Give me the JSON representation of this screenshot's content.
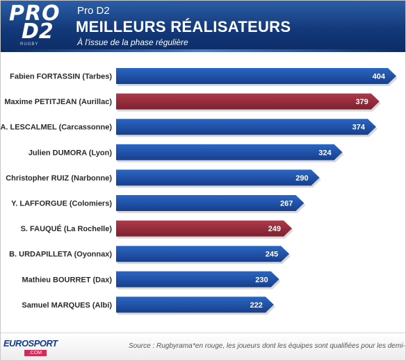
{
  "header": {
    "logo_line1": "PRO",
    "logo_line2": "D2",
    "logo_sub": "RUGBY",
    "kicker": "Pro D2",
    "title": "MEILLEURS RÉALISATEURS",
    "subtitle": "À l'issue de la phase régulière"
  },
  "colors": {
    "standard": "#1f55ad",
    "qualified": "#9b2c3c"
  },
  "chart_data": {
    "type": "bar",
    "orientation": "horizontal",
    "title": "MEILLEURS RÉALISATEURS",
    "categories": [
      "Fabien FORTASSIN (Tarbes)",
      "Maxime PETITJEAN (Aurillac)",
      "A. LESCALMEL (Carcassonne)",
      "Julien DUMORA (Lyon)",
      "Christopher RUIZ (Narbonne)",
      "Y. LAFFORGUE (Colomiers)",
      "S. FAUQUÉ (La Rochelle)",
      "B. URDAPILLETA (Oyonnax)",
      "Mathieu BOURRET (Dax)",
      "Samuel MARQUES (Albi)"
    ],
    "values": [
      404,
      379,
      374,
      324,
      290,
      267,
      249,
      245,
      230,
      222
    ],
    "highlight": [
      false,
      true,
      false,
      false,
      false,
      false,
      true,
      false,
      false,
      false
    ],
    "data_labels": true,
    "grid": false
  },
  "footer": {
    "brand": "EUROSPORT",
    "brand_com": ".COM",
    "source": "Source : Rugbyrama",
    "note": "*en rouge, les joueurs dont les équipes sont qualifiées pour les demi-finales"
  }
}
